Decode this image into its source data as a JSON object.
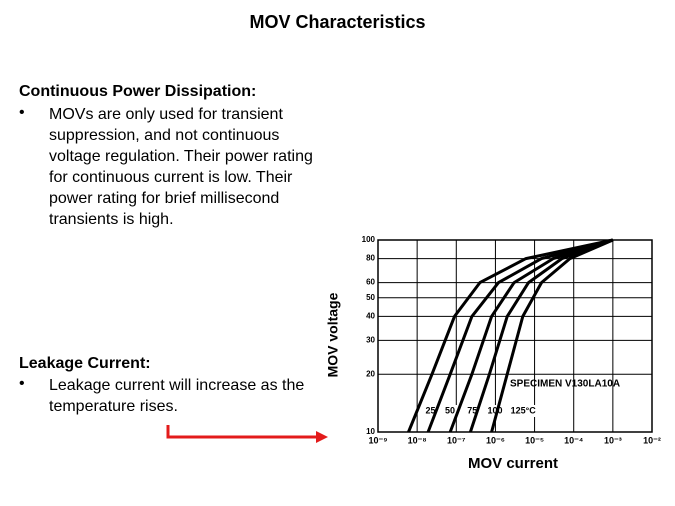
{
  "title": "MOV Characteristics",
  "sections": [
    {
      "heading": "Continuous Power Dissipation:",
      "bullets": [
        "MOVs are only used for transient suppression, and not continuous voltage regulation. Their power rating for continuous current is low. Their power rating for brief millisecond transients is high."
      ]
    },
    {
      "heading": "Leakage Current:",
      "bullets": [
        "Leakage current will increase as the temperature rises."
      ]
    }
  ],
  "chart_data": {
    "type": "line",
    "xlabel": "MOV current",
    "ylabel": "MOV voltage",
    "annotation": "SPECIMEN V130LA10A",
    "xscale": "log",
    "yscale": "log",
    "grid": true,
    "xlim": [
      1e-09,
      0.01
    ],
    "ylim": [
      10,
      100
    ],
    "xticks": [
      {
        "value": 1e-09,
        "label": "10⁻⁹"
      },
      {
        "value": 1e-08,
        "label": "10⁻⁸"
      },
      {
        "value": 1e-07,
        "label": "10⁻⁷"
      },
      {
        "value": 1e-06,
        "label": "10⁻⁶"
      },
      {
        "value": 1e-05,
        "label": "10⁻⁵"
      },
      {
        "value": 0.0001,
        "label": "10⁻⁴"
      },
      {
        "value": 0.001,
        "label": "10⁻³"
      },
      {
        "value": 0.01,
        "label": "10⁻²"
      }
    ],
    "yticks": [
      10,
      20,
      30,
      40,
      50,
      60,
      80,
      100
    ],
    "series": [
      {
        "name": "25",
        "color": "#000000",
        "x": [
          6e-09,
          2.4e-08,
          9e-08,
          4e-07,
          6e-06,
          0.001
        ],
        "values": [
          10,
          20,
          40,
          60,
          80,
          100
        ]
      },
      {
        "name": "50",
        "color": "#000000",
        "x": [
          1.9e-08,
          7e-08,
          2.5e-07,
          1.2e-06,
          1.5e-05,
          0.001
        ],
        "values": [
          10,
          20,
          40,
          60,
          80,
          100
        ]
      },
      {
        "name": "75",
        "color": "#000000",
        "x": [
          7e-08,
          2.5e-07,
          8e-07,
          3e-06,
          3e-05,
          0.001
        ],
        "values": [
          10,
          20,
          40,
          60,
          80,
          100
        ]
      },
      {
        "name": "100",
        "color": "#000000",
        "x": [
          2.3e-07,
          7e-07,
          2e-06,
          7e-06,
          5e-05,
          0.001
        ],
        "values": [
          10,
          20,
          40,
          60,
          80,
          100
        ]
      },
      {
        "name": "125°C",
        "color": "#000000",
        "x": [
          8e-07,
          2e-06,
          5e-06,
          1.5e-05,
          8e-05,
          0.001
        ],
        "values": [
          10,
          20,
          40,
          60,
          80,
          100
        ]
      }
    ]
  }
}
